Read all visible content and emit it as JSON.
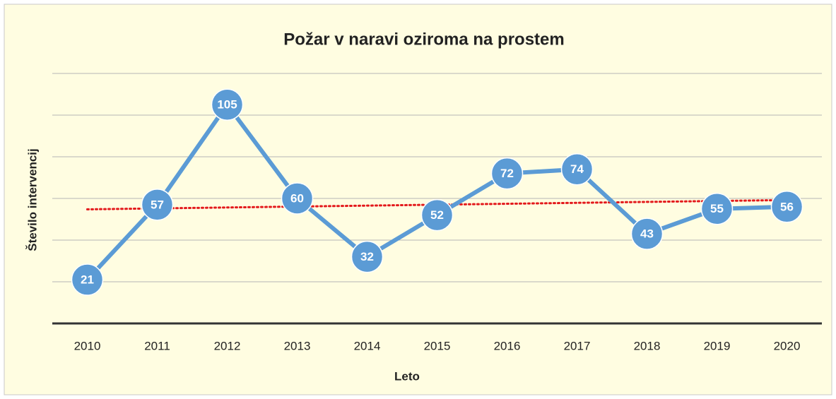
{
  "chart_data": {
    "type": "line",
    "title": "Požar v naravi oziroma na prostem",
    "x_label": "Leto",
    "y_label": "Število intervencij",
    "categories": [
      "2010",
      "2011",
      "2012",
      "2013",
      "2014",
      "2015",
      "2016",
      "2017",
      "2018",
      "2019",
      "2020"
    ],
    "series": [
      {
        "name": "Število intervencij",
        "color": "#5b9bd5",
        "values": [
          21,
          57,
          105,
          60,
          32,
          52,
          72,
          74,
          43,
          55,
          56
        ]
      }
    ],
    "ylim": [
      0,
      120
    ],
    "yticks": [
      20,
      40,
      60,
      80,
      100,
      120
    ],
    "grid": true,
    "trendline": {
      "type": "linear",
      "color": "#e31a1c"
    }
  }
}
